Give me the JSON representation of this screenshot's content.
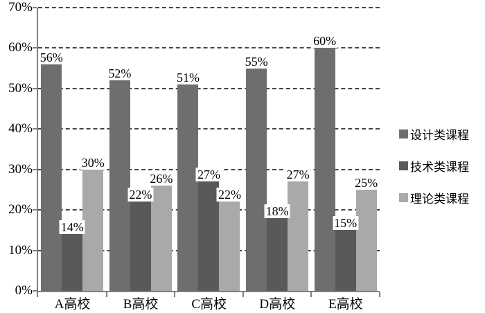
{
  "chart_data": {
    "type": "bar",
    "title": "",
    "xlabel": "",
    "ylabel": "",
    "categories": [
      "A高校",
      "B高校",
      "C高校",
      "D高校",
      "E高校"
    ],
    "series": [
      {
        "name": "设计类课程",
        "color": "#6e6e6e",
        "values": [
          56,
          52,
          51,
          55,
          60
        ]
      },
      {
        "name": "技术类课程",
        "color": "#595959",
        "values": [
          14,
          22,
          27,
          18,
          15
        ]
      },
      {
        "name": "理论类课程",
        "color": "#a9a9a9",
        "values": [
          30,
          26,
          22,
          27,
          25
        ]
      }
    ],
    "data_labels": [
      [
        "56%",
        "52%",
        "51%",
        "55%",
        "60%"
      ],
      [
        "14%",
        "22%",
        "27%",
        "18%",
        "15%"
      ],
      [
        "30%",
        "26%",
        "22%",
        "27%",
        "25%"
      ]
    ],
    "ylim": [
      0,
      70
    ],
    "y_ticks": [
      0,
      10,
      20,
      30,
      40,
      50,
      60,
      70
    ],
    "y_tick_labels": [
      "0%",
      "10%",
      "20%",
      "30%",
      "40%",
      "50%",
      "60%",
      "70%"
    ],
    "grid": "horizontal-dashed",
    "legend_position": "right",
    "legend_entries": [
      "设计类课程",
      "技术类课程",
      "理论类课程"
    ]
  },
  "colors": {
    "background": "#ffffff",
    "axis": "#7f7f7f",
    "gridline": "#454545",
    "text": "#000000"
  }
}
